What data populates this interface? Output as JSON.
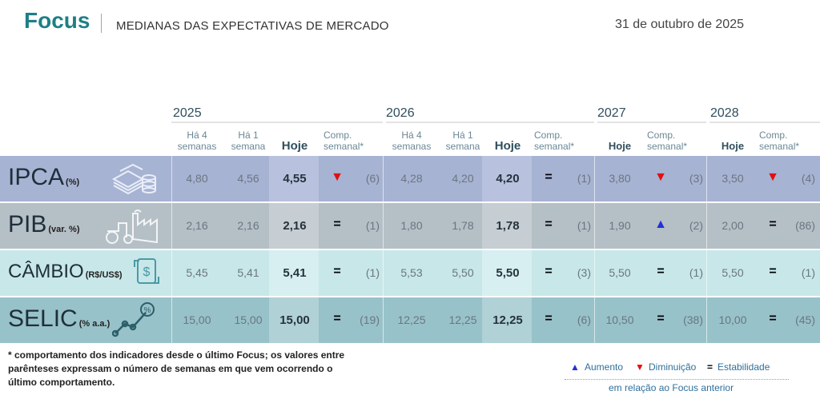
{
  "header": {
    "title": "Focus",
    "subtitle": "MEDIANAS DAS EXPECTATIVAS DE MERCADO",
    "date": "31 de outubro de 2025"
  },
  "years": [
    "2025",
    "2026",
    "2027",
    "2028"
  ],
  "col_headers": {
    "ha4": "Há 4\nsemanas",
    "ha1": "Há 1\nsemana",
    "hoje": "Hoje",
    "comp": "Comp.\nsemanal*"
  },
  "colors": {
    "ipca_bg": "#a7b3d3",
    "ipca_hoje": "#b8c2de",
    "pib_bg": "#b5bfc6",
    "pib_hoje": "#c6ced3",
    "cambio_bg": "#c8e7e9",
    "cambio_hoje": "#d7eff0",
    "selic_bg": "#98c2c9",
    "selic_hoje": "#b0d1d6",
    "up": "#2430d8",
    "down": "#e11010"
  },
  "rows": [
    {
      "name": "IPCA",
      "unit": "(%)",
      "icon": "coins-money-icon",
      "y2025": {
        "ha4": "4,80",
        "ha1": "4,56",
        "hoje": "4,55",
        "sym": "▼",
        "dir": "down",
        "cnt": "(6)"
      },
      "y2026": {
        "ha4": "4,28",
        "ha1": "4,20",
        "hoje": "4,20",
        "sym": "=",
        "dir": "eq",
        "cnt": "(1)"
      },
      "y2027": {
        "hoje": "3,80",
        "sym": "▼",
        "dir": "down",
        "cnt": "(3)"
      },
      "y2028": {
        "hoje": "3,50",
        "sym": "▼",
        "dir": "down",
        "cnt": "(4)"
      }
    },
    {
      "name": "PIB",
      "unit": "(var. %)",
      "icon": "factory-tractor-icon",
      "y2025": {
        "ha4": "2,16",
        "ha1": "2,16",
        "hoje": "2,16",
        "sym": "=",
        "dir": "eq",
        "cnt": "(1)"
      },
      "y2026": {
        "ha4": "1,80",
        "ha1": "1,78",
        "hoje": "1,78",
        "sym": "=",
        "dir": "eq",
        "cnt": "(1)"
      },
      "y2027": {
        "hoje": "1,90",
        "sym": "▲",
        "dir": "up",
        "cnt": "(2)"
      },
      "y2028": {
        "hoje": "2,00",
        "sym": "=",
        "dir": "eq",
        "cnt": "(86)"
      }
    },
    {
      "name": "CÂMBIO",
      "unit": "(R$/US$)",
      "icon": "exchange-dollar-icon",
      "y2025": {
        "ha4": "5,45",
        "ha1": "5,41",
        "hoje": "5,41",
        "sym": "=",
        "dir": "eq",
        "cnt": "(1)"
      },
      "y2026": {
        "ha4": "5,53",
        "ha1": "5,50",
        "hoje": "5,50",
        "sym": "=",
        "dir": "eq",
        "cnt": "(3)"
      },
      "y2027": {
        "hoje": "5,50",
        "sym": "=",
        "dir": "eq",
        "cnt": "(1)"
      },
      "y2028": {
        "hoje": "5,50",
        "sym": "=",
        "dir": "eq",
        "cnt": "(1)"
      }
    },
    {
      "name": "SELIC",
      "unit": "(% a.a.)",
      "icon": "percent-chart-icon",
      "y2025": {
        "ha4": "15,00",
        "ha1": "15,00",
        "hoje": "15,00",
        "sym": "=",
        "dir": "eq",
        "cnt": "(19)"
      },
      "y2026": {
        "ha4": "12,25",
        "ha1": "12,25",
        "hoje": "12,25",
        "sym": "=",
        "dir": "eq",
        "cnt": "(6)"
      },
      "y2027": {
        "hoje": "10,50",
        "sym": "=",
        "dir": "eq",
        "cnt": "(38)"
      },
      "y2028": {
        "hoje": "10,00",
        "sym": "=",
        "dir": "eq",
        "cnt": "(45)"
      }
    }
  ],
  "footnote": "* comportamento dos indicadores desde o último Focus; os valores entre parênteses expressam o número de semanas em que vem ocorrendo o último comportamento.",
  "legend": {
    "up_symbol": "▲",
    "up_label": "Aumento",
    "down_symbol": "▼",
    "down_label": "Diminuição",
    "eq_symbol": "=",
    "eq_label": "Estabilidade",
    "sub": "em relação ao Focus anterior"
  }
}
